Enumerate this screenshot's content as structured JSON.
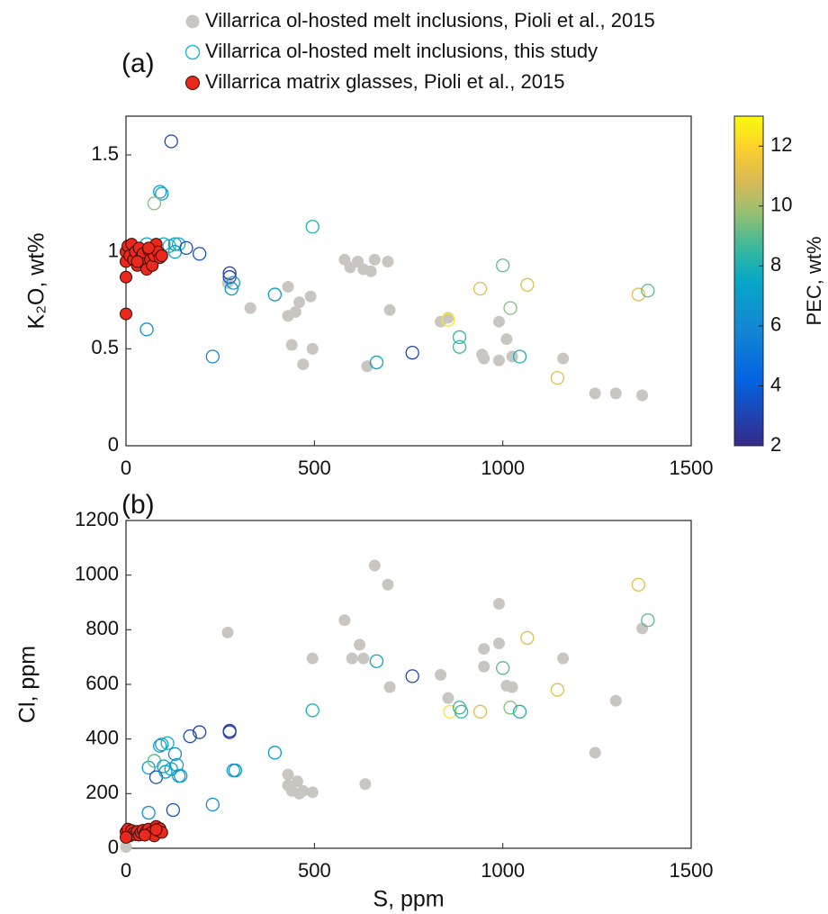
{
  "chart_data": [
    {
      "type": "scatter",
      "panel_label": "(a)",
      "ylabel": "K₂O, wt%",
      "xlim": [
        0,
        1500
      ],
      "xticks": [
        0,
        500,
        1000,
        1500
      ],
      "ylim": [
        0,
        1.7
      ],
      "yticks": [
        0,
        0.5,
        1,
        1.5
      ],
      "colorbar": {
        "label": "PEC, wt%",
        "colormap": "parula",
        "lim": [
          2,
          13
        ],
        "ticks": [
          2,
          4,
          6,
          8,
          10,
          12
        ]
      },
      "series": [
        {
          "name": "Villarrica ol-hosted melt inclusions, Pioli et al., 2015",
          "color": "#c9c6c1",
          "style": "filled",
          "x": [
            270,
            330,
            430,
            430,
            440,
            450,
            460,
            470,
            490,
            495,
            580,
            595,
            615,
            630,
            640,
            650,
            660,
            695,
            700,
            835,
            855,
            945,
            950,
            990,
            1010,
            990,
            1025,
            1160,
            1245,
            1300,
            1370
          ],
          "y": [
            0.84,
            0.71,
            0.82,
            0.67,
            0.52,
            0.69,
            0.74,
            0.42,
            0.77,
            0.5,
            0.96,
            0.92,
            0.95,
            0.91,
            0.41,
            0.9,
            0.96,
            0.95,
            0.7,
            0.64,
            0.66,
            0.47,
            0.45,
            0.64,
            0.55,
            0.44,
            0.46,
            0.45,
            0.27,
            0.27,
            0.26
          ]
        },
        {
          "name": "Villarrica ol-hosted melt inclusions, this study",
          "color": "#2ab7cf",
          "style": "open",
          "x": [
            120,
            90,
            95,
            75,
            495,
            55,
            100,
            115,
            130,
            140,
            130,
            160,
            195,
            275,
            275,
            285,
            280,
            395,
            55,
            230,
            665,
            760,
            855,
            885,
            885,
            940,
            1000,
            1020,
            1045,
            1065,
            1145,
            1360,
            1385
          ],
          "y": [
            1.57,
            1.31,
            1.3,
            1.25,
            1.13,
            1.04,
            1.04,
            1.03,
            1.04,
            1.04,
            1.0,
            1.02,
            0.99,
            0.89,
            0.87,
            0.84,
            0.81,
            0.78,
            0.6,
            0.46,
            0.43,
            0.48,
            0.65,
            0.56,
            0.51,
            0.81,
            0.93,
            0.71,
            0.46,
            0.83,
            0.35,
            0.78,
            0.8
          ],
          "pec": [
            3,
            7,
            7,
            9.5,
            8,
            7,
            7.5,
            8,
            7,
            8,
            7,
            3.5,
            3.5,
            2.5,
            3,
            7,
            6.5,
            7,
            6.5,
            6,
            7.5,
            3,
            12.5,
            8.5,
            8.5,
            11,
            9,
            9.5,
            8,
            11,
            11,
            11,
            9
          ]
        },
        {
          "name": "Villarrica matrix glasses, Pioli et al., 2015",
          "color": "#e8291c",
          "edge": "#3a0a06",
          "style": "filled",
          "x": [
            0,
            0,
            5,
            10,
            15,
            20,
            25,
            30,
            35,
            40,
            45,
            50,
            55,
            60,
            65,
            70,
            75,
            80,
            85,
            90,
            95,
            0,
            0,
            30,
            60
          ],
          "y": [
            1.0,
            0.95,
            1.03,
            0.98,
            1.04,
            0.96,
            1.0,
            0.93,
            1.02,
            0.97,
            0.99,
            0.94,
            0.91,
            1.01,
            0.96,
            0.93,
            0.98,
            1.04,
            1.0,
            0.97,
            0.98,
            0.87,
            0.68,
            0.95,
            1.02
          ]
        }
      ]
    },
    {
      "type": "scatter",
      "panel_label": "(b)",
      "ylabel": "Cl, ppm",
      "xlabel": "S, ppm",
      "xlim": [
        0,
        1500
      ],
      "xticks": [
        0,
        500,
        1000,
        1500
      ],
      "ylim": [
        0,
        1200
      ],
      "yticks": [
        0,
        200,
        400,
        600,
        800,
        1000,
        1200
      ],
      "series": [
        {
          "color": "#c9c6c1",
          "style": "filled",
          "x": [
            0,
            270,
            430,
            430,
            440,
            455,
            460,
            470,
            495,
            495,
            580,
            600,
            620,
            630,
            635,
            660,
            695,
            700,
            835,
            855,
            950,
            950,
            990,
            990,
            1010,
            1025,
            1160,
            1245,
            1300,
            1370
          ],
          "y": [
            5,
            790,
            270,
            230,
            210,
            245,
            200,
            210,
            205,
            695,
            835,
            695,
            745,
            695,
            235,
            1035,
            965,
            590,
            635,
            550,
            730,
            665,
            895,
            750,
            595,
            590,
            695,
            350,
            540,
            805
          ]
        },
        {
          "color": "#2ab7cf",
          "style": "open",
          "x": [
            60,
            60,
            75,
            80,
            90,
            95,
            100,
            105,
            110,
            120,
            125,
            130,
            135,
            140,
            145,
            170,
            195,
            275,
            275,
            285,
            290,
            230,
            395,
            495,
            665,
            760,
            860,
            885,
            890,
            940,
            1000,
            1020,
            1045,
            1065,
            1145,
            1360,
            1385
          ],
          "y": [
            130,
            295,
            320,
            260,
            375,
            380,
            300,
            280,
            385,
            290,
            140,
            345,
            305,
            265,
            265,
            410,
            425,
            430,
            425,
            285,
            285,
            160,
            350,
            505,
            685,
            630,
            500,
            515,
            500,
            500,
            660,
            515,
            500,
            770,
            580,
            965,
            835
          ],
          "pec": [
            6.5,
            7,
            9,
            3.5,
            7,
            7,
            7,
            7,
            8,
            7.5,
            3.5,
            6,
            7,
            7,
            7,
            3,
            3,
            2.5,
            3,
            7,
            6.5,
            6,
            7,
            8,
            7.5,
            3,
            12.5,
            8.5,
            8.5,
            11,
            9,
            9.5,
            8,
            11,
            11,
            11,
            9
          ]
        },
        {
          "color": "#e8291c",
          "edge": "#3a0a06",
          "style": "filled",
          "x": [
            0,
            5,
            10,
            15,
            20,
            25,
            30,
            35,
            40,
            45,
            50,
            55,
            60,
            65,
            70,
            75,
            80,
            85,
            90,
            95,
            0,
            50,
            80
          ],
          "y": [
            60,
            70,
            45,
            65,
            55,
            50,
            62,
            48,
            58,
            66,
            52,
            64,
            70,
            55,
            60,
            45,
            80,
            65,
            72,
            58,
            40,
            48,
            68
          ]
        }
      ]
    }
  ]
}
